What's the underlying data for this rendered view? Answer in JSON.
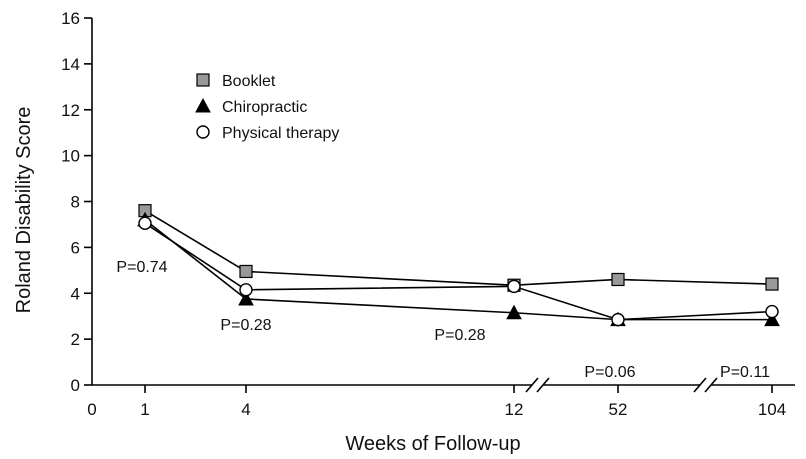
{
  "chart_data": {
    "type": "line",
    "title": "",
    "xlabel": "Weeks of Follow-up",
    "ylabel": "Roland Disability Score",
    "x_tick_labels": [
      "0",
      "1",
      "4",
      "12",
      "52",
      "104"
    ],
    "x": [
      1,
      4,
      12,
      52,
      104
    ],
    "ylim": [
      0,
      16
    ],
    "y_ticks": [
      0,
      2,
      4,
      6,
      8,
      10,
      12,
      14,
      16
    ],
    "axis_breaks": [
      "between 12 and 52",
      "between 52 and 104"
    ],
    "grid": false,
    "legend_position": "top-left",
    "series": [
      {
        "name": "Booklet",
        "marker": "square",
        "color": "#999999",
        "values": [
          7.6,
          4.95,
          4.35,
          4.6,
          4.4
        ]
      },
      {
        "name": "Chiropractic",
        "marker": "triangle",
        "color": "#000000",
        "values": [
          7.2,
          3.75,
          3.15,
          2.85,
          2.85
        ]
      },
      {
        "name": "Physical therapy",
        "marker": "circle",
        "color": "#ffffff",
        "values": [
          7.05,
          4.15,
          4.3,
          2.85,
          3.2
        ]
      }
    ],
    "annotations": [
      {
        "x": 1,
        "text": "P=0.74"
      },
      {
        "x": 4,
        "text": "P=0.28"
      },
      {
        "x": 12,
        "text": "P=0.28"
      },
      {
        "x": 52,
        "text": "P=0.06"
      },
      {
        "x": 104,
        "text": "P=0.11"
      }
    ]
  }
}
